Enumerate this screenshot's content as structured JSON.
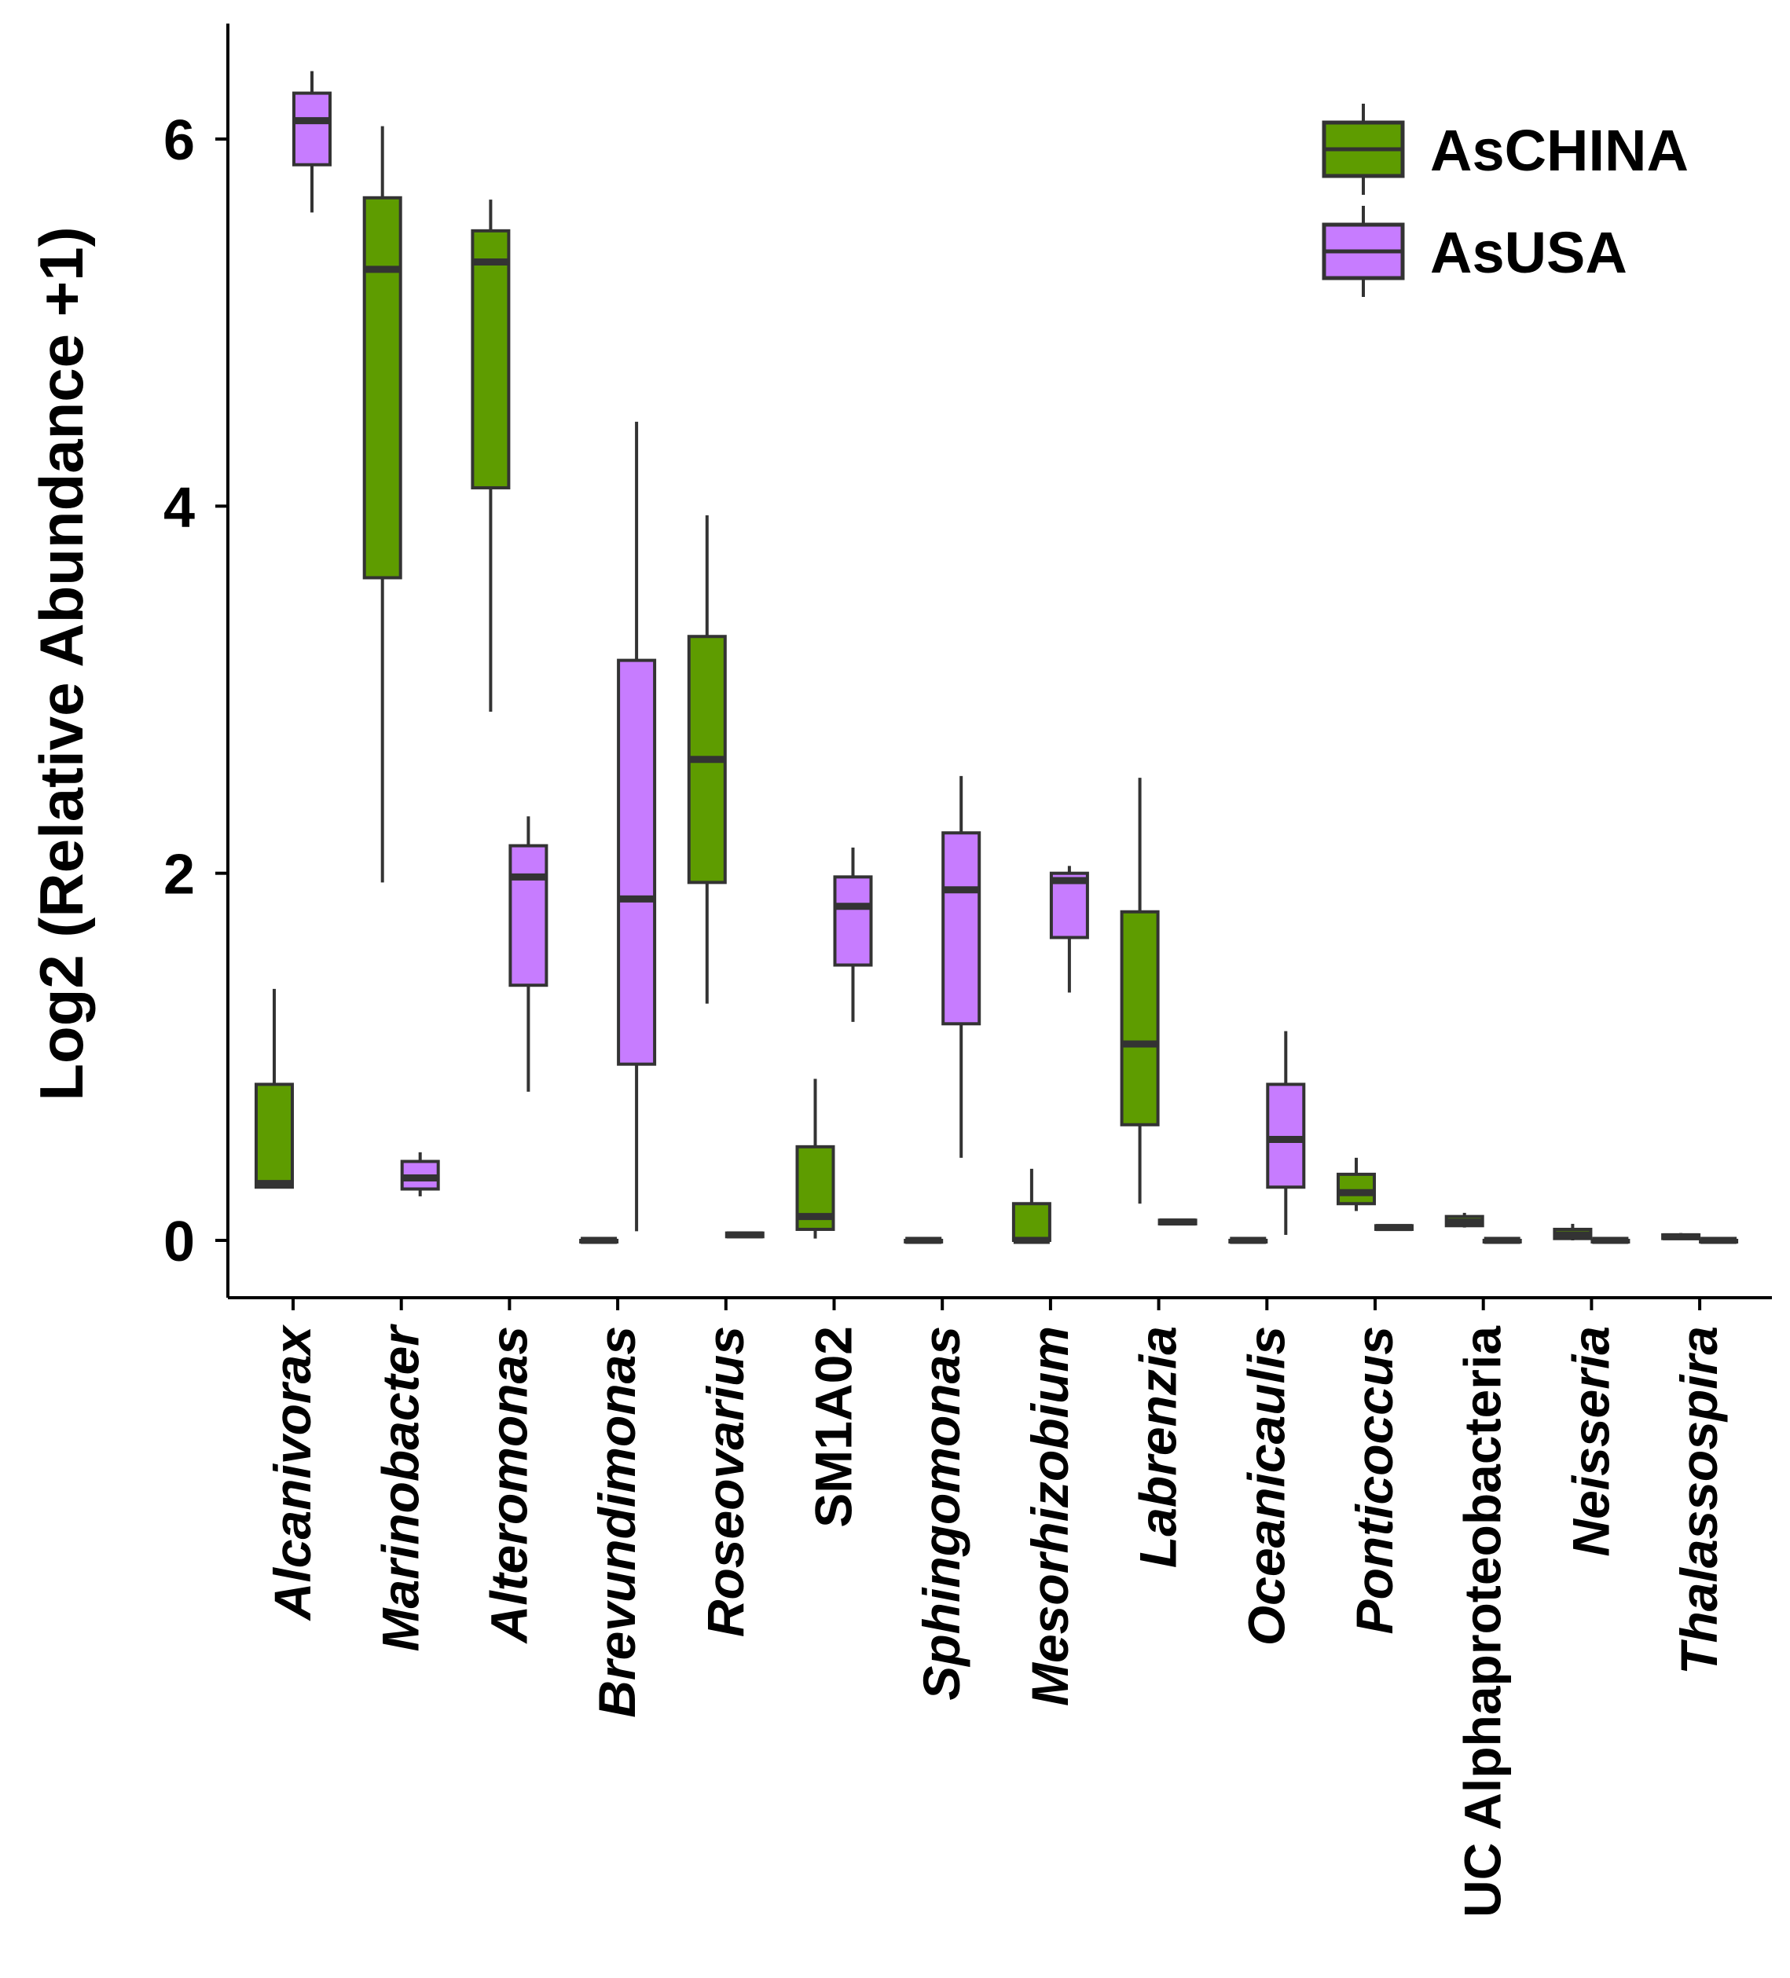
{
  "chart_data": {
    "type": "boxplot",
    "title": "",
    "xlabel": "",
    "ylabel": "Log2 (Relative Abundance +1)",
    "ylim": [
      -0.3,
      6.65
    ],
    "yticks": [
      "0",
      "2",
      "4",
      "6"
    ],
    "ytick_values": [
      0,
      2,
      4,
      6
    ],
    "grid": false,
    "legend_position": "top-right",
    "categories": [
      {
        "name": "Alcanivorax",
        "italic": true
      },
      {
        "name": "Marinobacter",
        "italic": true
      },
      {
        "name": "Alteromonas",
        "italic": true
      },
      {
        "name": "Brevundimonas",
        "italic": true
      },
      {
        "name": "Roseovarius",
        "italic": true
      },
      {
        "name": "SM1A02",
        "italic": false
      },
      {
        "name": "Sphingomonas",
        "italic": true
      },
      {
        "name": "Mesorhizobium",
        "italic": true
      },
      {
        "name": "Labrenzia",
        "italic": true
      },
      {
        "name": "Oceanicaulis",
        "italic": true
      },
      {
        "name": "Ponticoccus",
        "italic": true
      },
      {
        "name": "UC Alphaproteobacteria",
        "italic": false
      },
      {
        "name": "Neisseria",
        "italic": true
      },
      {
        "name": "Thalassospira",
        "italic": true
      }
    ],
    "series": [
      {
        "name": "AsCHINA",
        "color": "#5e9c00",
        "boxes": [
          {
            "min": 0.29,
            "q1": 0.29,
            "median": 0.31,
            "q3": 0.85,
            "max": 1.37
          },
          {
            "min": 1.95,
            "q1": 3.61,
            "median": 5.29,
            "q3": 5.68,
            "max": 6.07
          },
          {
            "min": 2.88,
            "q1": 4.1,
            "median": 5.33,
            "q3": 5.5,
            "max": 5.67
          },
          {
            "min": 0.0,
            "q1": 0.0,
            "median": 0.0,
            "q3": 0.0,
            "max": 0.0
          },
          {
            "min": 1.29,
            "q1": 1.95,
            "median": 2.62,
            "q3": 3.29,
            "max": 3.95
          },
          {
            "min": 0.01,
            "q1": 0.06,
            "median": 0.13,
            "q3": 0.51,
            "max": 0.88
          },
          {
            "min": 0.0,
            "q1": 0.0,
            "median": 0.0,
            "q3": 0.0,
            "max": 0.0
          },
          {
            "min": 0.0,
            "q1": 0.0,
            "median": 0.0,
            "q3": 0.2,
            "max": 0.39
          },
          {
            "min": 0.2,
            "q1": 0.63,
            "median": 1.07,
            "q3": 1.79,
            "max": 2.52
          },
          {
            "min": 0.0,
            "q1": 0.0,
            "median": 0.0,
            "q3": 0.0,
            "max": 0.0
          },
          {
            "min": 0.16,
            "q1": 0.2,
            "median": 0.26,
            "q3": 0.36,
            "max": 0.45
          },
          {
            "min": 0.07,
            "q1": 0.08,
            "median": 0.1,
            "q3": 0.13,
            "max": 0.15
          },
          {
            "min": 0.0,
            "q1": 0.01,
            "median": 0.03,
            "q3": 0.06,
            "max": 0.09
          },
          {
            "min": 0.01,
            "q1": 0.01,
            "median": 0.02,
            "q3": 0.03,
            "max": 0.04
          }
        ]
      },
      {
        "name": "AsUSA",
        "color": "#c77cff",
        "boxes": [
          {
            "min": 5.6,
            "q1": 5.86,
            "median": 6.1,
            "q3": 6.25,
            "max": 6.37
          },
          {
            "min": 0.24,
            "q1": 0.28,
            "median": 0.34,
            "q3": 0.43,
            "max": 0.48
          },
          {
            "min": 0.81,
            "q1": 1.39,
            "median": 1.98,
            "q3": 2.15,
            "max": 2.31
          },
          {
            "min": 0.05,
            "q1": 0.96,
            "median": 1.86,
            "q3": 3.16,
            "max": 4.46
          },
          {
            "min": 0.02,
            "q1": 0.02,
            "median": 0.03,
            "q3": 0.04,
            "max": 0.04
          },
          {
            "min": 1.19,
            "q1": 1.5,
            "median": 1.82,
            "q3": 1.98,
            "max": 2.14
          },
          {
            "min": 0.45,
            "q1": 1.18,
            "median": 1.91,
            "q3": 2.22,
            "max": 2.53
          },
          {
            "min": 1.35,
            "q1": 1.65,
            "median": 1.96,
            "q3": 2.0,
            "max": 2.04
          },
          {
            "min": 0.09,
            "q1": 0.09,
            "median": 0.1,
            "q3": 0.11,
            "max": 0.11
          },
          {
            "min": 0.03,
            "q1": 0.29,
            "median": 0.55,
            "q3": 0.85,
            "max": 1.14
          },
          {
            "min": 0.06,
            "q1": 0.06,
            "median": 0.07,
            "q3": 0.08,
            "max": 0.08
          },
          {
            "min": 0.0,
            "q1": 0.0,
            "median": 0.0,
            "q3": 0.0,
            "max": 0.0
          },
          {
            "min": 0.0,
            "q1": 0.0,
            "median": 0.0,
            "q3": 0.0,
            "max": 0.0
          },
          {
            "min": 0.0,
            "q1": 0.0,
            "median": 0.0,
            "q3": 0.0,
            "max": 0.0
          }
        ]
      }
    ]
  }
}
